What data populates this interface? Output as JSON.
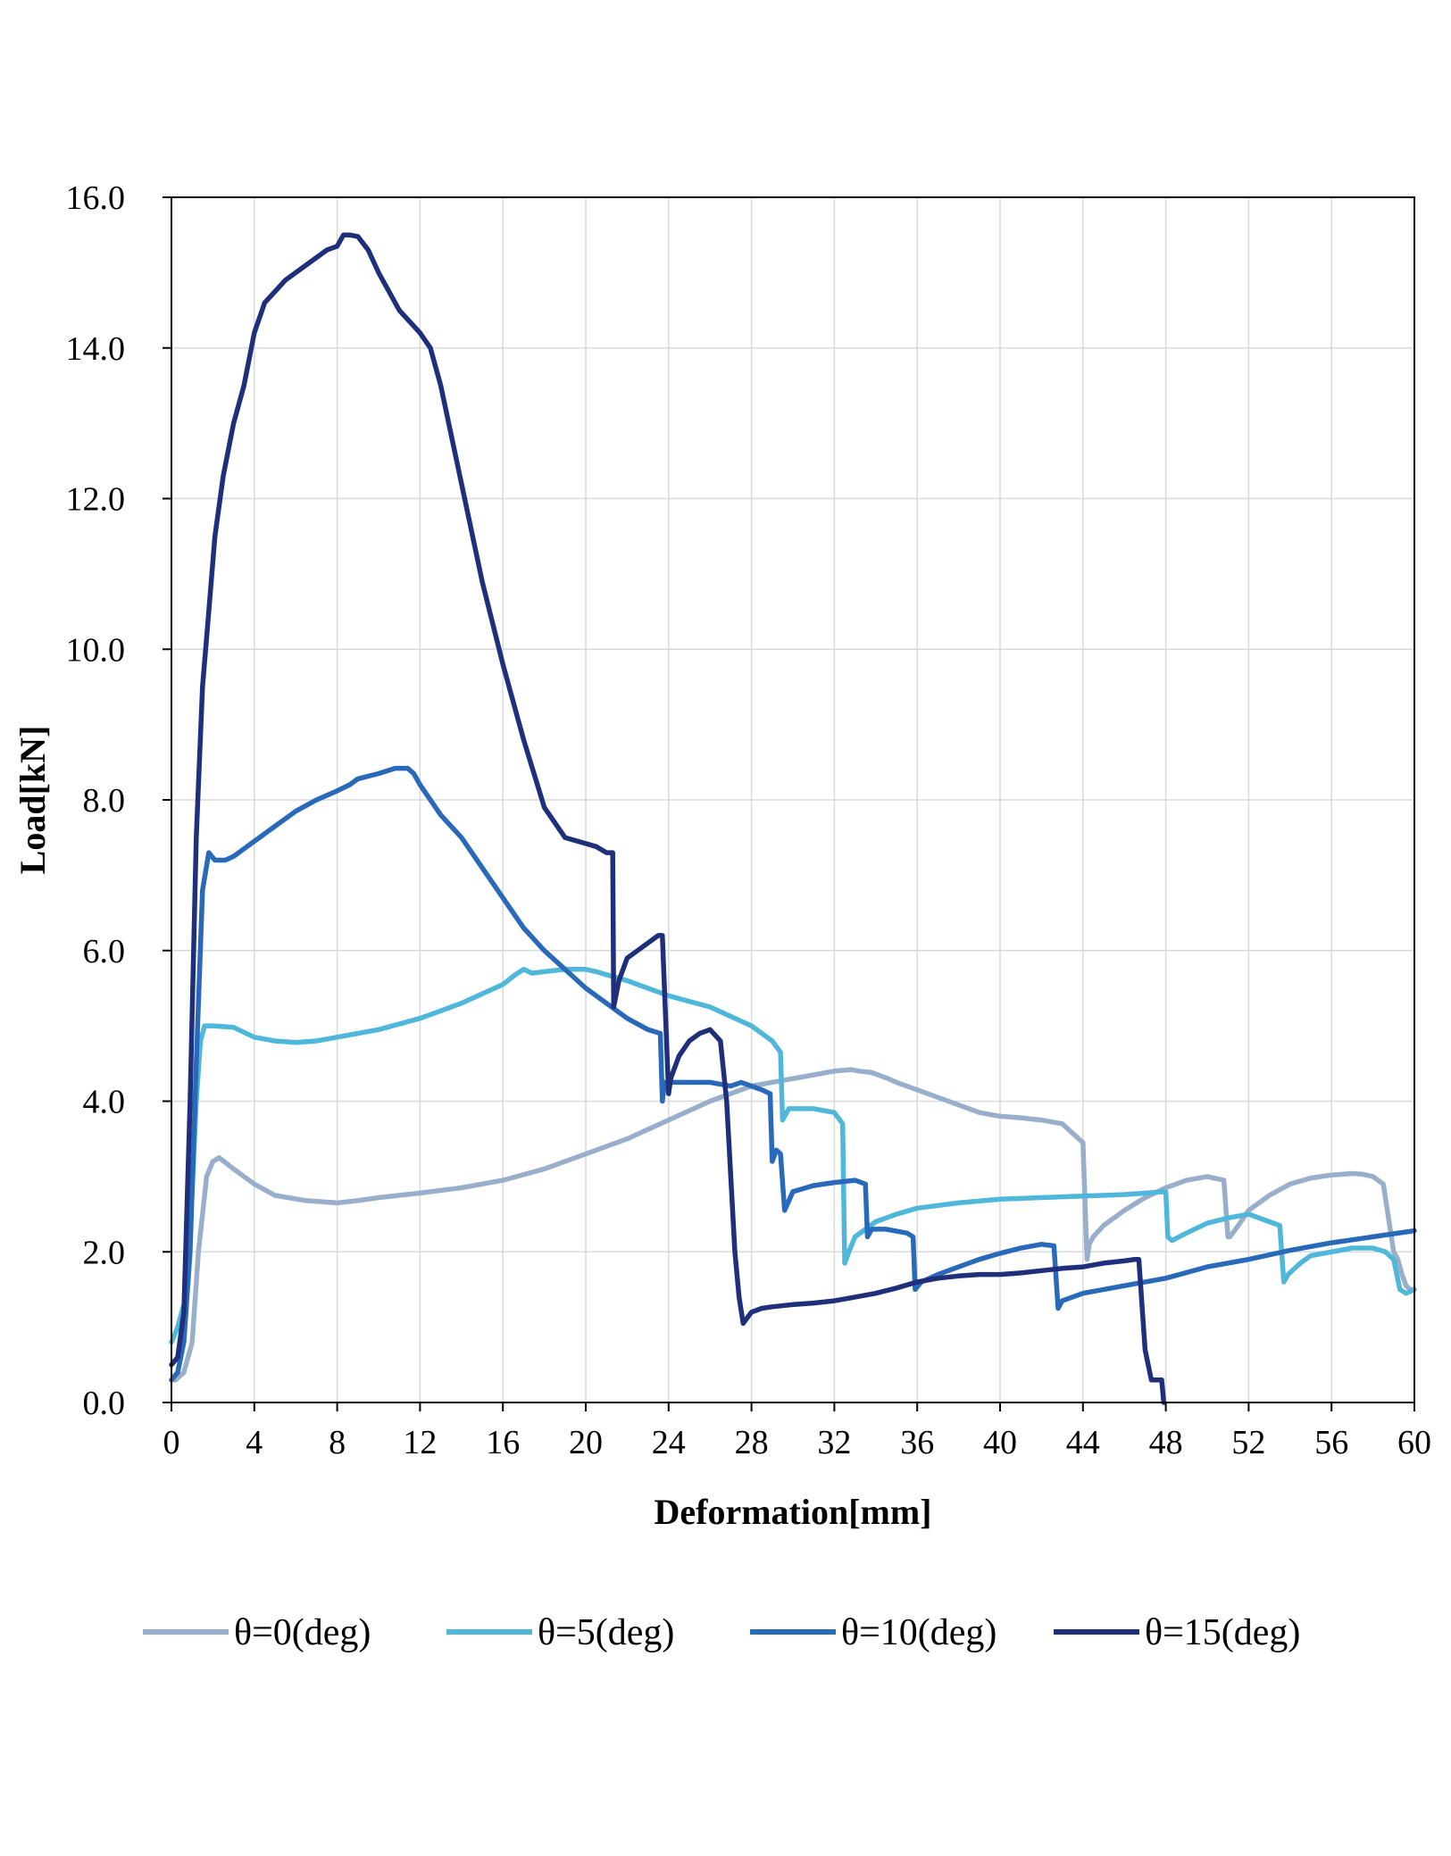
{
  "chart_data": {
    "type": "line",
    "title": "",
    "xlabel": "Deformation[mm]",
    "ylabel": "Load[kN]",
    "xlim": [
      0,
      60
    ],
    "ylim": [
      0,
      16
    ],
    "xticks": [
      0,
      4,
      8,
      12,
      16,
      20,
      24,
      28,
      32,
      36,
      40,
      44,
      48,
      52,
      56,
      60
    ],
    "xtick_labels": [
      "0",
      "4",
      "8",
      "12",
      "16",
      "20",
      "24",
      "28",
      "32",
      "36",
      "40",
      "44",
      "48",
      "52",
      "56",
      "60"
    ],
    "yticks": [
      0,
      2,
      4,
      6,
      8,
      10,
      12,
      14,
      16
    ],
    "ytick_labels": [
      "0.0",
      "2.0",
      "4.0",
      "6.0",
      "8.0",
      "10.0",
      "12.0",
      "14.0",
      "16.0"
    ],
    "grid": true,
    "legend_position": "bottom",
    "series": [
      {
        "name": "θ=0(deg)",
        "color": "#98AECB",
        "x": [
          0,
          0.2,
          0.6,
          1.0,
          1.3,
          1.7,
          2.0,
          2.3,
          3.0,
          4.0,
          5.0,
          6.5,
          8.0,
          9.0,
          10.0,
          12.0,
          14.0,
          16.0,
          18.0,
          20.0,
          22.0,
          24.0,
          26.0,
          28.0,
          30.0,
          31.0,
          32.0,
          32.8,
          33.2,
          33.8,
          34.6,
          35.0,
          36.0,
          38.0,
          39.0,
          40.0,
          41.0,
          42.0,
          43.0,
          43.6,
          44.0,
          44.2,
          44.3,
          44.5,
          45.0,
          46.0,
          47.0,
          48.0,
          49.0,
          50.0,
          50.8,
          51.0,
          51.1,
          51.5,
          52.0,
          53.0,
          54.0,
          55.0,
          56.0,
          57.0,
          57.5,
          58.0,
          58.5,
          59.0,
          59.2,
          59.4,
          59.6,
          59.8,
          60.0
        ],
        "values": [
          0.3,
          0.3,
          0.4,
          0.8,
          2.0,
          3.0,
          3.2,
          3.25,
          3.1,
          2.9,
          2.75,
          2.68,
          2.65,
          2.68,
          2.72,
          2.78,
          2.85,
          2.95,
          3.1,
          3.3,
          3.5,
          3.75,
          4.0,
          4.2,
          4.3,
          4.35,
          4.4,
          4.42,
          4.4,
          4.38,
          4.3,
          4.25,
          4.15,
          3.95,
          3.85,
          3.8,
          3.78,
          3.75,
          3.7,
          3.55,
          3.45,
          1.9,
          2.1,
          2.2,
          2.35,
          2.55,
          2.72,
          2.85,
          2.95,
          3.0,
          2.95,
          2.2,
          2.2,
          2.35,
          2.55,
          2.75,
          2.9,
          2.98,
          3.02,
          3.04,
          3.03,
          3.0,
          2.9,
          2.0,
          1.9,
          1.7,
          1.55,
          1.5,
          1.5
        ]
      },
      {
        "name": "θ=5(deg)",
        "color": "#4FB7D9",
        "x": [
          0,
          0.3,
          0.7,
          1.0,
          1.2,
          1.4,
          1.6,
          2.0,
          3.0,
          4.0,
          5.0,
          6.0,
          7.0,
          8.0,
          10.0,
          12.0,
          14.0,
          16.0,
          16.6,
          17.0,
          17.4,
          18.0,
          19.0,
          20.0,
          20.5,
          21.0,
          22.0,
          24.0,
          26.0,
          28.0,
          29.0,
          29.4,
          29.5,
          29.8,
          30.0,
          31.0,
          32.0,
          32.4,
          32.5,
          32.7,
          33.0,
          34.0,
          35.0,
          36.0,
          38.0,
          40.0,
          42.0,
          44.0,
          46.0,
          48.0,
          48.1,
          48.3,
          49.0,
          50.0,
          51.0,
          52.0,
          53.0,
          53.5,
          53.7,
          53.9,
          54.5,
          55.0,
          56.0,
          57.0,
          58.0,
          58.6,
          59.0,
          59.3,
          59.6,
          60.0
        ],
        "values": [
          0.8,
          1.0,
          1.4,
          2.8,
          4.0,
          4.8,
          5.0,
          5.0,
          4.98,
          4.85,
          4.8,
          4.78,
          4.8,
          4.85,
          4.95,
          5.1,
          5.3,
          5.55,
          5.68,
          5.75,
          5.7,
          5.72,
          5.75,
          5.75,
          5.72,
          5.68,
          5.6,
          5.4,
          5.25,
          5.0,
          4.8,
          4.65,
          3.75,
          3.9,
          3.9,
          3.9,
          3.85,
          3.7,
          1.85,
          2.0,
          2.2,
          2.4,
          2.5,
          2.58,
          2.65,
          2.7,
          2.72,
          2.74,
          2.76,
          2.8,
          2.2,
          2.15,
          2.25,
          2.38,
          2.45,
          2.5,
          2.4,
          2.35,
          1.6,
          1.7,
          1.85,
          1.95,
          2.0,
          2.05,
          2.05,
          2.0,
          1.9,
          1.5,
          1.45,
          1.5
        ]
      },
      {
        "name": "θ=10(deg)",
        "color": "#2969B9",
        "x": [
          0,
          0.3,
          0.6,
          0.9,
          1.2,
          1.5,
          1.8,
          2.1,
          2.3,
          2.6,
          3.0,
          3.5,
          4.0,
          5.0,
          6.0,
          7.0,
          8.0,
          8.6,
          9.0,
          10.0,
          10.8,
          11.4,
          11.7,
          12.0,
          13.0,
          14.0,
          15.0,
          16.0,
          17.0,
          18.0,
          19.0,
          20.0,
          21.0,
          22.0,
          23.0,
          23.6,
          23.7,
          23.8,
          24.0,
          25.0,
          26.0,
          27.0,
          27.5,
          28.0,
          28.5,
          28.9,
          29.0,
          29.2,
          29.4,
          29.6,
          30.0,
          31.0,
          32.0,
          33.0,
          33.5,
          33.6,
          33.8,
          34.5,
          35.5,
          35.8,
          35.9,
          36.2,
          37.0,
          38.0,
          39.0,
          40.0,
          41.0,
          42.0,
          42.6,
          42.8,
          43.0,
          44.0,
          46.0,
          48.0,
          50.0,
          52.0,
          54.0,
          56.0,
          58.0,
          60.0
        ],
        "values": [
          0.3,
          0.4,
          0.8,
          2.0,
          4.5,
          6.8,
          7.3,
          7.2,
          7.2,
          7.2,
          7.25,
          7.35,
          7.45,
          7.65,
          7.85,
          8.0,
          8.12,
          8.2,
          8.28,
          8.35,
          8.42,
          8.42,
          8.35,
          8.2,
          7.8,
          7.5,
          7.1,
          6.7,
          6.3,
          6.0,
          5.75,
          5.5,
          5.3,
          5.1,
          4.95,
          4.9,
          4.0,
          4.25,
          4.25,
          4.25,
          4.25,
          4.2,
          4.25,
          4.2,
          4.15,
          4.1,
          3.2,
          3.35,
          3.3,
          2.55,
          2.8,
          2.88,
          2.92,
          2.95,
          2.9,
          2.2,
          2.3,
          2.3,
          2.25,
          2.2,
          1.5,
          1.6,
          1.7,
          1.8,
          1.9,
          1.98,
          2.05,
          2.1,
          2.08,
          1.25,
          1.35,
          1.45,
          1.55,
          1.65,
          1.8,
          1.9,
          2.02,
          2.12,
          2.2,
          2.28
        ]
      },
      {
        "name": "θ=15(deg)",
        "color": "#1F2F7B",
        "x": [
          0,
          0.3,
          0.6,
          0.9,
          1.2,
          1.5,
          1.8,
          2.1,
          2.5,
          3.0,
          3.5,
          4.0,
          4.5,
          5.0,
          5.5,
          6.0,
          7.0,
          7.5,
          8.0,
          8.3,
          8.6,
          9.0,
          9.5,
          10.0,
          11.0,
          12.0,
          12.5,
          13.0,
          14.0,
          15.0,
          16.0,
          17.0,
          18.0,
          19.0,
          20.0,
          20.5,
          21.0,
          21.3,
          21.35,
          21.6,
          22.0,
          22.5,
          23.0,
          23.5,
          23.7,
          24.0,
          24.1,
          24.5,
          25.0,
          25.5,
          26.0,
          26.5,
          26.8,
          27.0,
          27.2,
          27.4,
          27.6,
          28.0,
          28.5,
          29.0,
          30.0,
          31.0,
          32.0,
          33.0,
          34.0,
          35.0,
          36.0,
          37.0,
          38.0,
          39.0,
          40.0,
          41.0,
          42.0,
          43.0,
          44.0,
          45.0,
          46.0,
          46.5,
          46.7,
          47.0,
          47.3,
          47.8,
          47.9,
          47.9
        ],
        "values": [
          0.5,
          0.6,
          1.2,
          4.0,
          7.5,
          9.5,
          10.5,
          11.5,
          12.3,
          13.0,
          13.5,
          14.2,
          14.6,
          14.75,
          14.9,
          15.0,
          15.2,
          15.3,
          15.35,
          15.5,
          15.5,
          15.48,
          15.3,
          15.0,
          14.5,
          14.2,
          14.0,
          13.5,
          12.2,
          10.9,
          9.8,
          8.8,
          7.9,
          7.5,
          7.42,
          7.38,
          7.3,
          7.3,
          5.25,
          5.6,
          5.9,
          6.0,
          6.1,
          6.2,
          6.2,
          4.1,
          4.3,
          4.6,
          4.8,
          4.9,
          4.95,
          4.8,
          4.0,
          3.0,
          2.0,
          1.4,
          1.05,
          1.2,
          1.25,
          1.27,
          1.3,
          1.32,
          1.35,
          1.4,
          1.45,
          1.52,
          1.6,
          1.65,
          1.68,
          1.7,
          1.7,
          1.72,
          1.75,
          1.78,
          1.8,
          1.85,
          1.88,
          1.9,
          1.9,
          0.7,
          0.3,
          0.3,
          0.0,
          0.0
        ]
      }
    ]
  }
}
